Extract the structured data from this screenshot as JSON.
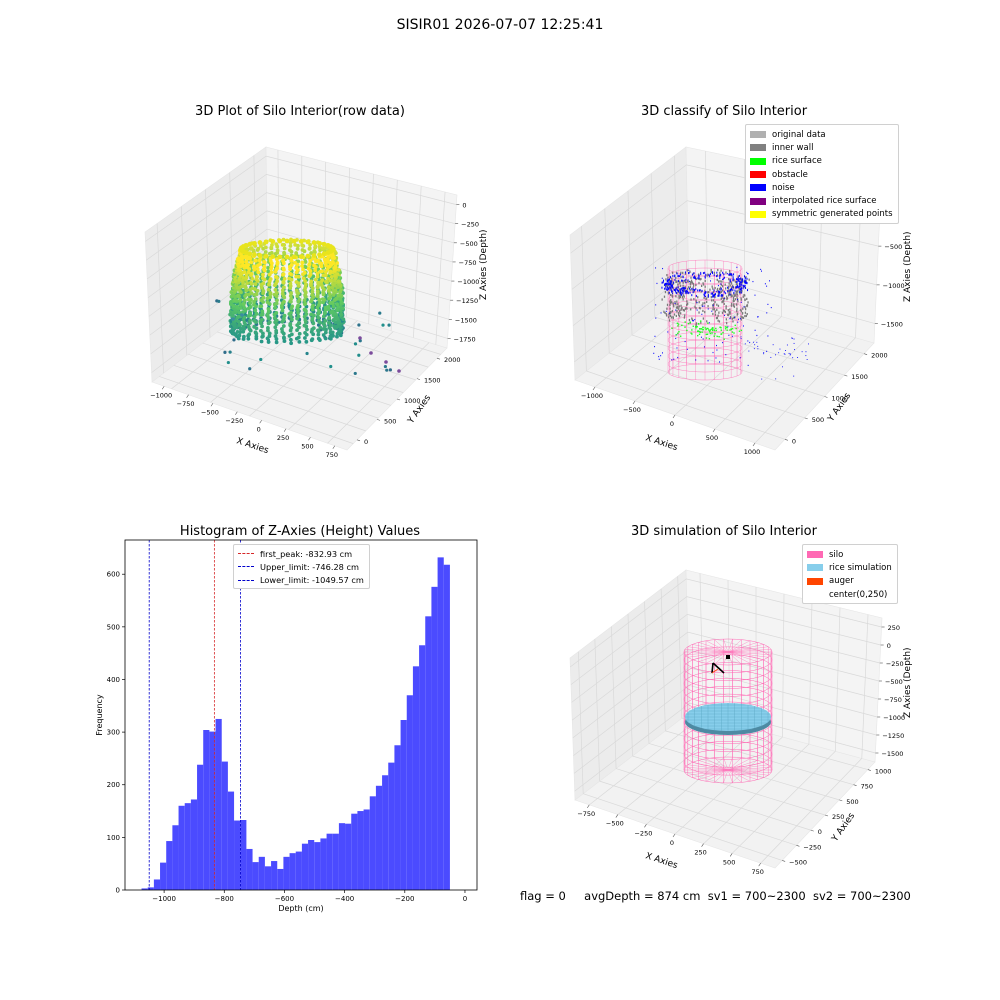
{
  "figure": {
    "suptitle": "SISIR01 2026-07-07 12:25:41",
    "status": {
      "flag": "flag = 0",
      "avg_depth": "avgDepth = 874 cm",
      "sv1": "sv1 = 700~2300",
      "sv2": "sv2 = 700~2300"
    }
  },
  "colors": {
    "axis_pane": "#f2f2f2",
    "histogram_bar": "#4b4bff",
    "peak_line": "#d62728",
    "limit_line": "#0000cc",
    "silo_wire": "#ff69b4",
    "rice_simulation": "#87ceeb",
    "auger": "#ff4500"
  },
  "chart_data": [
    {
      "type": "scatter",
      "projection": "3d",
      "title": "3D Plot of Silo Interior(row data)",
      "xlabel": "X Axies",
      "ylabel": "Y Axies",
      "zlabel": "Z Axies (Depth)",
      "x_ticks": [
        "−1000",
        "−750",
        "−500",
        "−250",
        "0",
        "250",
        "500",
        "750"
      ],
      "y_ticks": [
        "0",
        "500",
        "1000",
        "1500",
        "2000"
      ],
      "z_ticks": [
        "0",
        "−250",
        "−500",
        "−750",
        "−1000",
        "−1250",
        "−1500",
        "−1750"
      ],
      "xlim": [
        -1050,
        800
      ],
      "ylim": [
        -150,
        2150
      ],
      "zlim": [
        -1900,
        50
      ],
      "colormap": "viridis",
      "grid": true
    },
    {
      "type": "scatter",
      "projection": "3d",
      "title": "3D classify of Silo Interior",
      "xlabel": "X Axies",
      "ylabel": "Y Axies",
      "zlabel": "Z Axies (Depth)",
      "x_ticks": [
        "−1000",
        "−500",
        "0",
        "500",
        "1000"
      ],
      "y_ticks": [
        "0",
        "500",
        "1000",
        "1500",
        "2000"
      ],
      "z_ticks": [
        "0",
        "−500",
        "−1000",
        "−1500"
      ],
      "xlim": [
        -1150,
        1050
      ],
      "ylim": [
        -100,
        2150
      ],
      "zlim": [
        -1800,
        100
      ],
      "grid": true,
      "legend_position": "top-right",
      "legend": [
        {
          "label": "original data",
          "color": "#b0b0b0"
        },
        {
          "label": "inner wall",
          "color": "#808080"
        },
        {
          "label": "rice surface",
          "color": "#00ff00"
        },
        {
          "label": "obstacle",
          "color": "#ff0000"
        },
        {
          "label": "noise",
          "color": "#0000ff"
        },
        {
          "label": "interpolated rice surface",
          "color": "#800080"
        },
        {
          "label": "symmetric generated points",
          "color": "#ffff00"
        }
      ]
    },
    {
      "type": "bar",
      "title": "Histogram of Z-Axies (Height) Values",
      "xlabel": "Depth (cm)",
      "ylabel": "Frequency",
      "x_ticks": [
        -1000,
        -800,
        -600,
        -400,
        -200,
        0
      ],
      "y_ticks": [
        0,
        100,
        200,
        300,
        400,
        500,
        600
      ],
      "xlim": [
        -1130,
        40
      ],
      "ylim": [
        0,
        665
      ],
      "bin_start": -1075,
      "bin_width": 20.5,
      "counts": [
        3,
        5,
        20,
        52,
        93,
        123,
        160,
        165,
        172,
        238,
        304,
        301,
        325,
        244,
        187,
        132,
        133,
        78,
        53,
        63,
        45,
        55,
        40,
        63,
        70,
        73,
        88,
        95,
        91,
        98,
        107,
        107,
        127,
        126,
        145,
        150,
        153,
        178,
        198,
        218,
        242,
        275,
        323,
        370,
        425,
        465,
        520,
        576,
        632,
        618
      ],
      "vlines": [
        {
          "value": -832.93,
          "label": "first_peak: -832.93 cm",
          "color": "#d62728"
        },
        {
          "value": -746.28,
          "label": "Upper_limit: -746.28 cm",
          "color": "#0000cc"
        },
        {
          "value": -1049.57,
          "label": "Lower_limit: -1049.57 cm",
          "color": "#0000cc"
        }
      ],
      "legend_position": "top-center"
    },
    {
      "type": "scatter",
      "projection": "3d",
      "title": "3D simulation of Silo Interior",
      "xlabel": "X Axies",
      "ylabel": "Y Axies",
      "zlabel": "Z Axies (Depth)",
      "x_ticks": [
        "−750",
        "−500",
        "−250",
        "0",
        "250",
        "500",
        "750"
      ],
      "y_ticks": [
        "−500",
        "−250",
        "0",
        "250",
        "500",
        "750",
        "1000"
      ],
      "z_ticks": [
        "250",
        "0",
        "−250",
        "−500",
        "−750",
        "−1000",
        "−1250",
        "−1500"
      ],
      "xlim": [
        -850,
        850
      ],
      "ylim": [
        -600,
        1100
      ],
      "zlim": [
        -1650,
        300
      ],
      "grid": true,
      "legend_position": "top-right",
      "legend": [
        {
          "label": "silo",
          "color": "#ff69b4"
        },
        {
          "label": "rice simulation",
          "color": "#87ceeb"
        },
        {
          "label": "auger",
          "color": "#ff4500"
        },
        {
          "label": "center(0,250)",
          "color": ""
        }
      ]
    }
  ]
}
